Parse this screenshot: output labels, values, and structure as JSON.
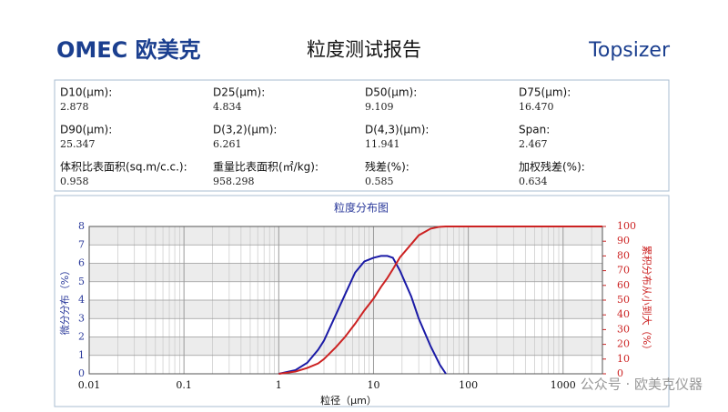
{
  "header": {
    "logo": "OMEC 欧美克",
    "title": "粒度测试报告",
    "brand": "Topsizer"
  },
  "params": [
    {
      "label": "D10(µm):",
      "value": "2.878"
    },
    {
      "label": "D25(µm):",
      "value": "4.834"
    },
    {
      "label": "D50(µm):",
      "value": "9.109"
    },
    {
      "label": "D75(µm):",
      "value": "16.470"
    },
    {
      "label": "D90(µm):",
      "value": "25.347"
    },
    {
      "label": "D(3,2)(µm):",
      "value": "6.261"
    },
    {
      "label": "D(4,3)(µm):",
      "value": "11.941"
    },
    {
      "label": "Span:",
      "value": "2.467"
    },
    {
      "label": "体积比表面积(sq.m/c.c.):",
      "value": "0.958"
    },
    {
      "label": "重量比表面积(㎡/kg):",
      "value": "958.298"
    },
    {
      "label": "残差(%):",
      "value": "0.585"
    },
    {
      "label": "加权残差(%):",
      "value": "0.634"
    }
  ],
  "chart_data": {
    "type": "line",
    "title": "粒度分布图",
    "x_label": "粒径（µm）",
    "y_label": "微分分布（%）",
    "y2_label": "累积分布从小到大（%）",
    "x_log": true,
    "xlim": [
      0.01,
      2600
    ],
    "xticks": [
      0.01,
      0.1,
      1,
      10,
      100,
      1000
    ],
    "ylim": [
      0,
      8
    ],
    "yticks": [
      0,
      1,
      2,
      3,
      4,
      5,
      6,
      7,
      8
    ],
    "y2lim": [
      0,
      100
    ],
    "y2ticks": [
      0,
      10,
      20,
      30,
      40,
      50,
      60,
      70,
      80,
      90,
      100
    ],
    "grid": true,
    "x": [
      1,
      1.5,
      2,
      2.6,
      3,
      4,
      5,
      6.4,
      8,
      10,
      12,
      14,
      16,
      19,
      25,
      30,
      40,
      50,
      58,
      100,
      300,
      1000,
      2600
    ],
    "series": [
      {
        "name": "微分分布",
        "color": "#1a1aa6",
        "values": [
          0,
          0.2,
          0.6,
          1.3,
          1.8,
          3.2,
          4.3,
          5.5,
          6.1,
          6.3,
          6.4,
          6.4,
          6.3,
          5.6,
          4.2,
          3.0,
          1.5,
          0.5,
          0,
          null,
          null,
          null,
          null
        ]
      },
      {
        "name": "累积分布",
        "color": "#cc2222",
        "axis": "y2",
        "values": [
          0,
          1.5,
          4,
          7,
          10,
          18,
          25,
          34,
          43,
          51,
          59,
          65,
          71,
          79,
          88,
          94,
          98.5,
          99.8,
          100,
          100,
          100,
          100,
          100
        ]
      }
    ]
  },
  "watermark": "公众号 · 欧美克仪器"
}
